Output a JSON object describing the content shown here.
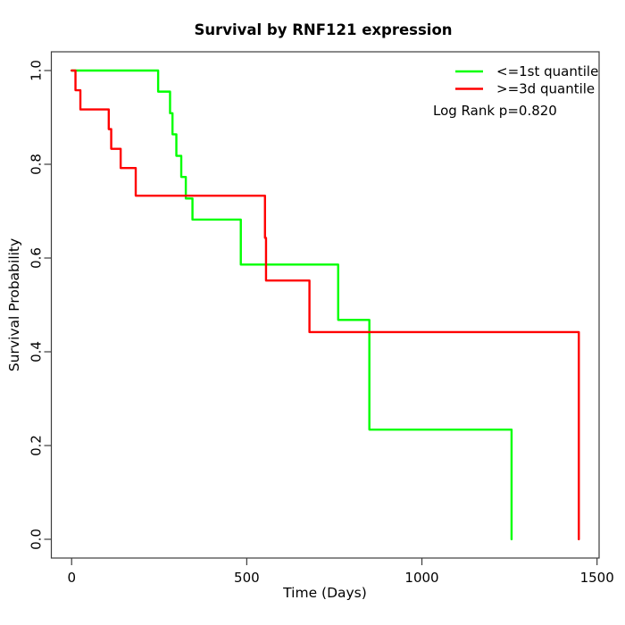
{
  "chart_data": {
    "type": "line",
    "subtype": "kaplan_meier_step",
    "title": "Survival by RNF121 expression",
    "xlabel": "Time (Days)",
    "ylabel": "Survival Probability",
    "xlim": [
      0,
      1500
    ],
    "ylim": [
      0.0,
      1.0
    ],
    "x_ticks": [
      {
        "v": 0,
        "label": "0"
      },
      {
        "v": 500,
        "label": "500"
      },
      {
        "v": 1000,
        "label": "1000"
      },
      {
        "v": 1500,
        "label": "1500"
      }
    ],
    "y_ticks": [
      {
        "v": 0.0,
        "label": "0.0"
      },
      {
        "v": 0.2,
        "label": "0.2"
      },
      {
        "v": 0.4,
        "label": "0.4"
      },
      {
        "v": 0.6,
        "label": "0.6"
      },
      {
        "v": 0.8,
        "label": "0.8"
      },
      {
        "v": 1.0,
        "label": "1.0"
      }
    ],
    "grid": false,
    "legend_position": "top-right",
    "annotation": "Log Rank p=0.820",
    "axis_color": "#3c3c3c",
    "series": [
      {
        "name": "<=1st quantile",
        "color": "#00ff00",
        "steps": [
          [
            0,
            1.0
          ],
          [
            247,
            0.955
          ],
          [
            281,
            0.909
          ],
          [
            288,
            0.864
          ],
          [
            299,
            0.818
          ],
          [
            313,
            0.773
          ],
          [
            326,
            0.727
          ],
          [
            345,
            0.682
          ],
          [
            483,
            0.586
          ],
          [
            761,
            0.468
          ],
          [
            850,
            0.234
          ],
          [
            1256,
            0.0
          ]
        ]
      },
      {
        "name": ">=3d quantile",
        "color": "#ff0000",
        "steps": [
          [
            0,
            1.0
          ],
          [
            11,
            0.958
          ],
          [
            25,
            0.917
          ],
          [
            106,
            0.875
          ],
          [
            113,
            0.833
          ],
          [
            140,
            0.792
          ],
          [
            183,
            0.733
          ],
          [
            552,
            0.643
          ],
          [
            555,
            0.552
          ],
          [
            679,
            0.442
          ],
          [
            1448,
            0.0
          ]
        ]
      }
    ]
  }
}
